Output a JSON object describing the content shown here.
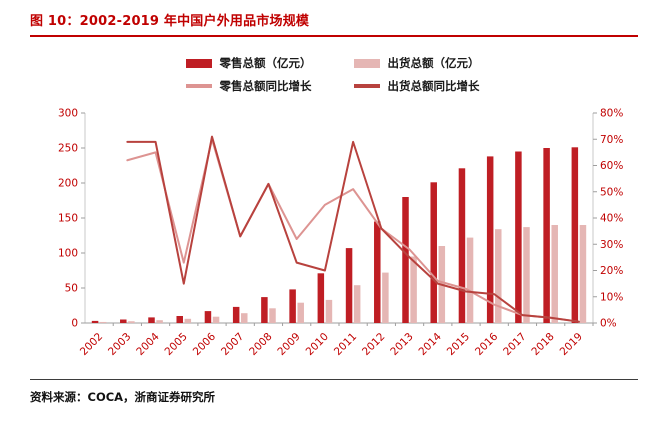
{
  "header": {
    "title": "图 10：2002-2019 年中国户外用品市场规模"
  },
  "footer": {
    "source": "资料来源：COCA，浙商证券研究所"
  },
  "chart_data": {
    "type": "bar+line",
    "title": "2002-2019 年中国户外用品市场规模",
    "categories": [
      "2002",
      "2003",
      "2004",
      "2005",
      "2006",
      "2007",
      "2008",
      "2009",
      "2010",
      "2011",
      "2012",
      "2013",
      "2014",
      "2015",
      "2016",
      "2017",
      "2018",
      "2019"
    ],
    "bar_series": [
      {
        "name": "零售总额（亿元）",
        "color": "#bf1e24",
        "axis": "left",
        "values": [
          3,
          5,
          8,
          10,
          17,
          23,
          37,
          48,
          71,
          107,
          145,
          180,
          201,
          221,
          238,
          245,
          250,
          251
        ]
      },
      {
        "name": "出货总额（亿元）",
        "color": "#e5b6b4",
        "axis": "left",
        "values": [
          1.5,
          2.5,
          4,
          6,
          9,
          14,
          21,
          29,
          33,
          54,
          72,
          95,
          110,
          122,
          134,
          137,
          140,
          140
        ]
      }
    ],
    "line_series": [
      {
        "name": "零售总额同比增长",
        "color": "#dd9492",
        "axis": "right",
        "values": [
          null,
          62,
          65,
          23,
          70,
          33,
          53,
          32,
          45,
          51,
          36,
          28,
          16,
          13,
          7,
          3,
          2,
          0.5
        ]
      },
      {
        "name": "出货总额同比增长",
        "color": "#b8423e",
        "axis": "right",
        "values": [
          null,
          69,
          69,
          15,
          71,
          33,
          53,
          23,
          20,
          69,
          36,
          25,
          15,
          12,
          11,
          3,
          2,
          0.5
        ]
      }
    ],
    "left_axis": {
      "min": 0,
      "max": 300,
      "ticks": [
        0,
        50,
        100,
        150,
        200,
        250,
        300
      ]
    },
    "right_axis": {
      "min": 0,
      "max": 80,
      "ticks": [
        "0%",
        "10%",
        "20%",
        "30%",
        "40%",
        "50%",
        "60%",
        "70%",
        "80%"
      ]
    },
    "grid": false,
    "legend_position": "top"
  }
}
